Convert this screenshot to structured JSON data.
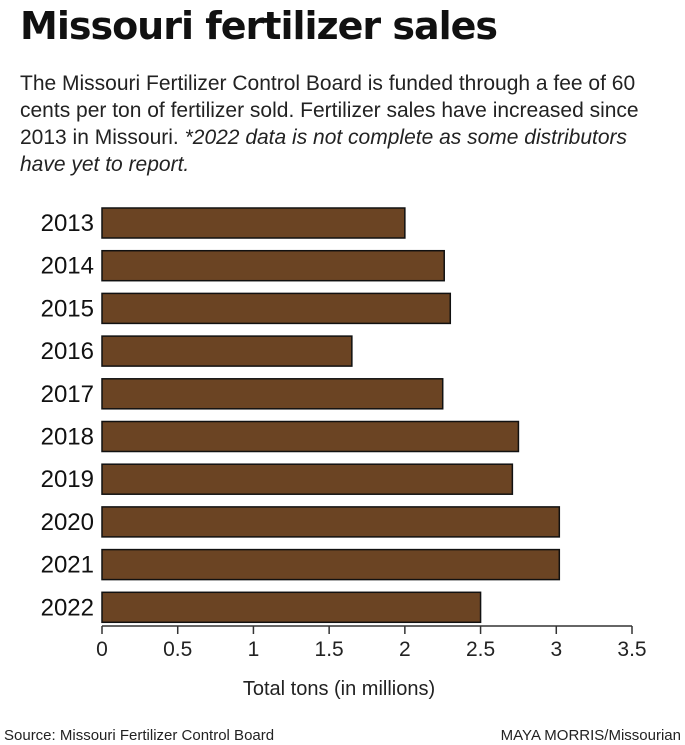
{
  "header": {
    "title": "Missouri fertilizer sales",
    "subtitle_main": "The Missouri Fertilizer Control Board is funded through a fee of 60 cents per ton of fertilizer sold. Fertilizer sales have increased since 2013 in Missouri.",
    "subtitle_note": "*2022 data is not complete as some distributors have yet to report."
  },
  "footer": {
    "source": "Source: Missouri Fertilizer Control Board",
    "credit_name": "MAYA MORRIS",
    "credit_outlet": "/Missourian"
  },
  "colors": {
    "bar": "#6b4423",
    "bar_stroke": "#111111",
    "axis": "#333333"
  },
  "chart_data": {
    "type": "bar",
    "orientation": "horizontal",
    "categories": [
      "2013",
      "2014",
      "2015",
      "2016",
      "2017",
      "2018",
      "2019",
      "2020",
      "2021",
      "2022"
    ],
    "values": [
      2.0,
      2.26,
      2.3,
      1.65,
      2.25,
      2.75,
      2.71,
      3.02,
      3.02,
      2.5
    ],
    "xlabel": "Total tons (in millions)",
    "ylabel": "",
    "xlim": [
      0,
      3.5
    ],
    "xticks": [
      "0",
      "0.5",
      "1",
      "1.5",
      "2",
      "2.5",
      "3",
      "3.5"
    ],
    "grid": false
  }
}
